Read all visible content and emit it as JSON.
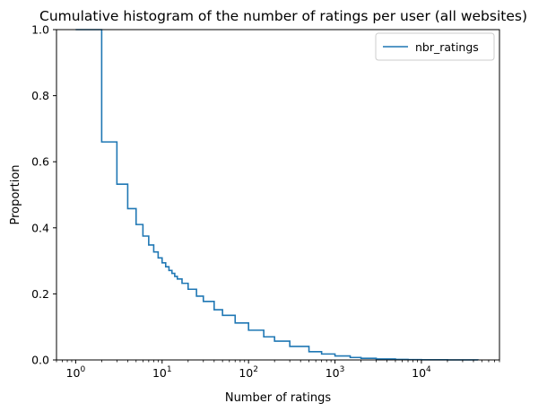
{
  "chart_data": {
    "type": "line",
    "title": "Cumulative histogram of the number of ratings per user (all websites)",
    "xlabel": "Number of ratings",
    "ylabel": "Proportion",
    "xscale": "log",
    "xlim": [
      0.6,
      80000
    ],
    "ylim": [
      0.0,
      1.0
    ],
    "grid": false,
    "legend_position": "top-right",
    "x_tick_labels": [
      {
        "base": "10",
        "exp": "0",
        "value": 1
      },
      {
        "base": "10",
        "exp": "1",
        "value": 10
      },
      {
        "base": "10",
        "exp": "2",
        "value": 100
      },
      {
        "base": "10",
        "exp": "3",
        "value": 1000
      },
      {
        "base": "10",
        "exp": "4",
        "value": 10000
      }
    ],
    "y_ticks": [
      {
        "label": "0.0",
        "value": 0.0
      },
      {
        "label": "0.2",
        "value": 0.2
      },
      {
        "label": "0.4",
        "value": 0.4
      },
      {
        "label": "0.6",
        "value": 0.6
      },
      {
        "label": "0.8",
        "value": 0.8
      },
      {
        "label": "1.0",
        "value": 1.0
      }
    ],
    "series": [
      {
        "name": "nbr_ratings",
        "color": "#1f77b4",
        "step": "post",
        "x": [
          1,
          2,
          3,
          4,
          5,
          6,
          7,
          8,
          9,
          10,
          11,
          12,
          13,
          14,
          15,
          17,
          20,
          25,
          30,
          40,
          50,
          70,
          100,
          150,
          200,
          300,
          500,
          700,
          1000,
          1500,
          2000,
          3000,
          5000,
          7000,
          10000,
          20000,
          45000
        ],
        "y": [
          1.0,
          0.66,
          0.532,
          0.458,
          0.41,
          0.375,
          0.348,
          0.327,
          0.309,
          0.294,
          0.282,
          0.271,
          0.262,
          0.253,
          0.245,
          0.232,
          0.214,
          0.193,
          0.177,
          0.152,
          0.135,
          0.112,
          0.09,
          0.07,
          0.057,
          0.041,
          0.025,
          0.018,
          0.012,
          0.0075,
          0.005,
          0.003,
          0.0015,
          0.001,
          0.0006,
          0.0002,
          0.0
        ]
      }
    ]
  }
}
